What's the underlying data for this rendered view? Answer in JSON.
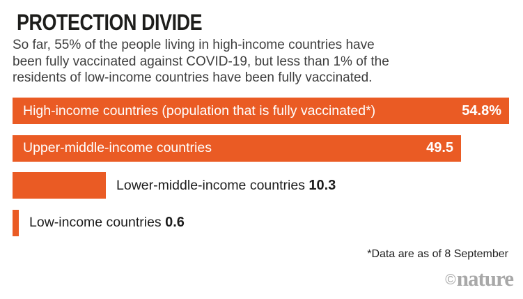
{
  "header": {
    "title": "PROTECTION DIVIDE",
    "subtitle_lines": [
      "So far, 55% of the people living in high-income countries have",
      "been fully vaccinated against COVID-19, but less than 1% of the",
      "residents of low-income countries have been fully vaccinated."
    ]
  },
  "chart_data": {
    "type": "bar",
    "orientation": "horizontal",
    "title": "PROTECTION DIVIDE",
    "subtitle": "So far, 55% of the people living in high-income countries have been fully vaccinated against COVID-19, but less than 1% of the residents of low-income countries have been fully vaccinated.",
    "categories": [
      "High-income countries (population that is fully vaccinated*)",
      "Upper-middle-income countries",
      "Lower-middle-income countries",
      "Low-income countries"
    ],
    "values": [
      54.8,
      49.5,
      10.3,
      0.6
    ],
    "display_values": [
      "54.8%",
      "49.5",
      "10.3",
      "0.6"
    ],
    "label_position": [
      "inside",
      "inside",
      "outside",
      "outside"
    ],
    "bar_color": "#ea5b24",
    "xlim": [
      0,
      54.8
    ],
    "grid": false,
    "legend": false
  },
  "footnote": "*Data are as of 8 September",
  "branding": {
    "copyright_symbol": "©",
    "name": "nature",
    "color": "#a8a8a8"
  }
}
